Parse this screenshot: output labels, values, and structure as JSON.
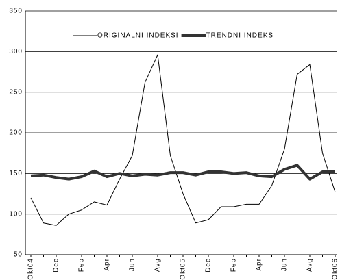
{
  "chart_data": {
    "type": "line",
    "categories": [
      "Okt04",
      null,
      "Dec",
      null,
      "Feb",
      null,
      "Apr",
      null,
      "Jun",
      null,
      "Avg",
      null,
      "Okt05",
      null,
      "Dec",
      null,
      "Feb",
      null,
      "Apr",
      null,
      "Jun",
      null,
      "Avg",
      null,
      "Okt06"
    ],
    "series": [
      {
        "name": "ORIGINALNI INDEKSI",
        "color": "#000000",
        "line_width": 1,
        "values": [
          120,
          89,
          86,
          100,
          105,
          115,
          111,
          143,
          172,
          262,
          296,
          172,
          125,
          89,
          93,
          109,
          109,
          112,
          112,
          135,
          180,
          272,
          284,
          175,
          127
        ]
      },
      {
        "name": "TRENDNI INDEKS",
        "color": "#333333",
        "line_width": 4,
        "values": [
          147,
          148,
          145,
          143,
          146,
          153,
          146,
          150,
          147,
          149,
          148,
          151,
          151,
          148,
          152,
          152,
          150,
          151,
          147,
          146,
          155,
          160,
          143,
          152,
          152
        ]
      }
    ],
    "ylim": [
      50,
      350
    ],
    "yticks": [
      50,
      100,
      150,
      200,
      250,
      300,
      350
    ],
    "grid": true,
    "legend": "top"
  }
}
